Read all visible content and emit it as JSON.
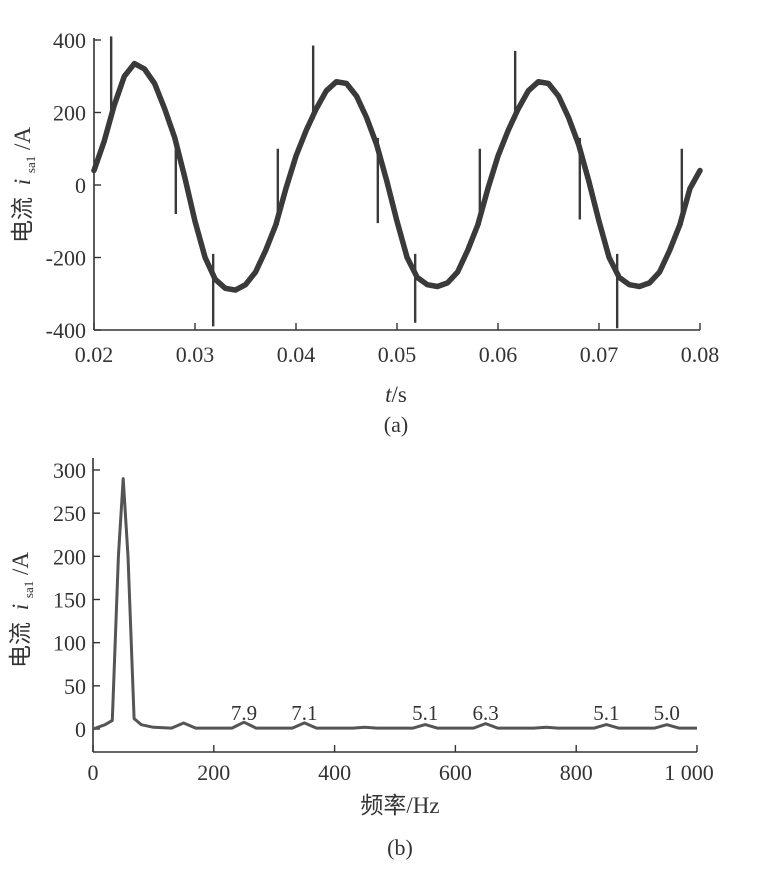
{
  "chart_data": [
    {
      "type": "line",
      "panel_label": "(a)",
      "xlabel_italic": "t",
      "xlabel_unit": "/s",
      "ylabel_prefix": "电流",
      "ylabel_italic": "i",
      "ylabel_sub": "sa1",
      "ylabel_unit": "/A",
      "xlim": [
        0.02,
        0.08
      ],
      "ylim": [
        -400,
        400
      ],
      "x_ticks": [
        0.02,
        0.03,
        0.04,
        0.05,
        0.06,
        0.07,
        0.08
      ],
      "x_tick_labels": [
        "0.02",
        "0.03",
        "0.04",
        "0.05",
        "0.06",
        "0.07",
        "0.08"
      ],
      "y_ticks": [
        400,
        200,
        0,
        -200,
        -400
      ],
      "y_tick_labels": [
        "400",
        "200",
        "0",
        "-200",
        "-400"
      ],
      "series": [
        {
          "x": [
            0.02,
            0.021,
            0.022,
            0.023,
            0.024,
            0.025,
            0.026,
            0.027,
            0.028,
            0.029,
            0.03,
            0.031,
            0.032,
            0.033,
            0.034,
            0.035,
            0.036,
            0.037,
            0.038,
            0.039,
            0.04,
            0.041,
            0.042,
            0.043,
            0.044,
            0.045,
            0.046,
            0.047,
            0.048,
            0.049,
            0.05,
            0.051,
            0.052,
            0.053,
            0.054,
            0.055,
            0.056,
            0.057,
            0.058,
            0.059,
            0.06,
            0.061,
            0.062,
            0.063,
            0.064,
            0.065,
            0.066,
            0.067,
            0.068,
            0.069,
            0.07,
            0.071,
            0.072,
            0.073,
            0.074,
            0.075,
            0.076,
            0.077,
            0.078,
            0.079,
            0.08
          ],
          "values": [
            40,
            120,
            220,
            300,
            335,
            320,
            280,
            210,
            130,
            20,
            -100,
            -200,
            -260,
            -285,
            -290,
            -275,
            -240,
            -180,
            -110,
            -10,
            80,
            150,
            210,
            260,
            285,
            280,
            245,
            185,
            110,
            10,
            -100,
            -200,
            -255,
            -275,
            -280,
            -270,
            -240,
            -180,
            -110,
            -10,
            80,
            150,
            210,
            260,
            285,
            280,
            245,
            185,
            110,
            10,
            -100,
            -200,
            -255,
            -275,
            -280,
            -270,
            -240,
            -180,
            -110,
            -10,
            40
          ]
        }
      ],
      "spikes": [
        {
          "x": 0.0217,
          "y1": 180,
          "y2": 410
        },
        {
          "x": 0.0281,
          "y1": 130,
          "y2": -80
        },
        {
          "x": 0.0318,
          "y1": -190,
          "y2": -390
        },
        {
          "x": 0.0382,
          "y1": -110,
          "y2": 100
        },
        {
          "x": 0.0417,
          "y1": 180,
          "y2": 385
        },
        {
          "x": 0.0481,
          "y1": 130,
          "y2": -105
        },
        {
          "x": 0.0518,
          "y1": -190,
          "y2": -380
        },
        {
          "x": 0.0582,
          "y1": -110,
          "y2": 100
        },
        {
          "x": 0.0617,
          "y1": 180,
          "y2": 370
        },
        {
          "x": 0.0681,
          "y1": 130,
          "y2": -95
        },
        {
          "x": 0.0718,
          "y1": -190,
          "y2": -395
        },
        {
          "x": 0.0782,
          "y1": -110,
          "y2": 100
        }
      ]
    },
    {
      "type": "line",
      "panel_label": "(b)",
      "xlabel": "频率/Hz",
      "ylabel_prefix": "电流",
      "ylabel_italic": "i",
      "ylabel_sub": "sa1",
      "ylabel_unit": "/A",
      "xlim": [
        0,
        1000
      ],
      "ylim": [
        0,
        300
      ],
      "x_ticks": [
        0,
        200,
        400,
        600,
        800,
        1000
      ],
      "x_tick_labels": [
        "0",
        "200",
        "400",
        "600",
        "800",
        "1 000"
      ],
      "y_ticks": [
        300,
        250,
        200,
        150,
        100,
        50,
        0
      ],
      "y_tick_labels": [
        "300",
        "250",
        "200",
        "150",
        "100",
        "50",
        "0"
      ],
      "series": [
        {
          "x": [
            0,
            20,
            32,
            42,
            50,
            58,
            68,
            80,
            100,
            130,
            150,
            170,
            200,
            230,
            250,
            270,
            300,
            330,
            350,
            370,
            400,
            430,
            450,
            470,
            500,
            530,
            550,
            570,
            600,
            630,
            650,
            670,
            700,
            730,
            750,
            770,
            800,
            830,
            850,
            870,
            900,
            930,
            950,
            970,
            1000
          ],
          "values": [
            0,
            5,
            10,
            200,
            290,
            200,
            12,
            5,
            2,
            1,
            7,
            1,
            1,
            1,
            7.9,
            1,
            1,
            1,
            7.1,
            1,
            1,
            1,
            2,
            1,
            1,
            1,
            5.1,
            1,
            1,
            1,
            6.3,
            1,
            1,
            1,
            2,
            1,
            1,
            1,
            5.1,
            1,
            1,
            1,
            5.0,
            1,
            1
          ]
        }
      ],
      "annotations": [
        {
          "x": 250,
          "text": "7.9"
        },
        {
          "x": 350,
          "text": "7.1"
        },
        {
          "x": 550,
          "text": "5.1"
        },
        {
          "x": 650,
          "text": "6.3"
        },
        {
          "x": 850,
          "text": "5.1"
        },
        {
          "x": 950,
          "text": "5.0"
        }
      ]
    }
  ]
}
